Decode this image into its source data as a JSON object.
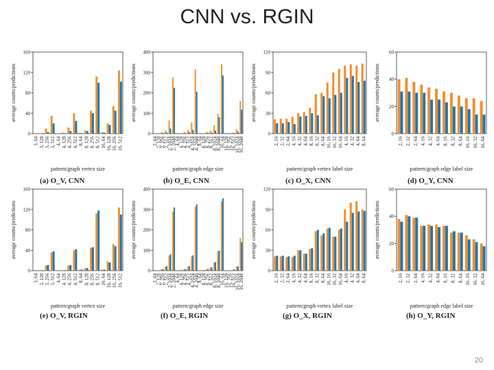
{
  "slide": {
    "title": "CNN vs. RGIN",
    "page_number": "20"
  },
  "colors": {
    "orange": "#f28e2b",
    "blue": "#1f77b4"
  },
  "chart_data": [
    {
      "id": "a",
      "type": "bar",
      "caption": "(a) O_V, CNN",
      "xlabel": "pattern/graph vertex size",
      "ylabel": "average counts/predictions",
      "ylim": [
        0,
        160
      ],
      "yticks": [
        0,
        40,
        80,
        120,
        160
      ],
      "categories": [
        "3, 64",
        "3, 128",
        "3, 256",
        "3, 512",
        "4, 64",
        "4, 128",
        "4, 256",
        "4, 512",
        "8, 64",
        "8, 128",
        "8, 256",
        "8, 512",
        "16, 64",
        "16, 128",
        "16, 256",
        "16, 512"
      ],
      "series": [
        {
          "color": "#f28e2b",
          "values": [
            1,
            1,
            10,
            35,
            1,
            2,
            12,
            40,
            2,
            6,
            45,
            112,
            3,
            20,
            54,
            124
          ]
        },
        {
          "color": "#1f77b4",
          "values": [
            0,
            1,
            3,
            20,
            0,
            1,
            5,
            25,
            1,
            5,
            40,
            100,
            2,
            17,
            45,
            102
          ]
        }
      ]
    },
    {
      "id": "b",
      "type": "bar",
      "caption": "(b) O_E, CNN",
      "xlabel": "pattern/graph edge size",
      "ylabel": "average counts/predictions",
      "ylim": [
        0,
        400
      ],
      "yticks": [
        0,
        100,
        200,
        300,
        400
      ],
      "categories": [
        "2, 64",
        "2, 128",
        "2, 256",
        "2, 512",
        "2, 1024",
        "2, 2048",
        "4, 64",
        "4, 128",
        "4, 256",
        "4, 512",
        "4, 1024",
        "4, 2048",
        "8, 64",
        "8, 128",
        "8, 256",
        "8, 512",
        "8, 1024",
        "8, 2048",
        "16, 64",
        "16, 128",
        "16, 256",
        "16, 512",
        "16, 1024",
        "16, 2048"
      ],
      "series": [
        {
          "color": "#f28e2b",
          "values": [
            0,
            2,
            7,
            15,
            65,
            275,
            0,
            3,
            8,
            18,
            55,
            315,
            0,
            3,
            8,
            15,
            40,
            97,
            340,
            0,
            2,
            5,
            20,
            160
          ]
        },
        {
          "color": "#1f77b4",
          "values": [
            0,
            1,
            3,
            6,
            25,
            225,
            0,
            1,
            3,
            7,
            18,
            205,
            0,
            1,
            4,
            6,
            15,
            80,
            285,
            0,
            1,
            3,
            10,
            118
          ]
        }
      ]
    },
    {
      "id": "c",
      "type": "bar",
      "caption": "(c) O_X, CNN",
      "xlabel": "pattern/graph vertex label size",
      "ylabel": "average counts/predictions",
      "ylim": [
        0,
        120
      ],
      "yticks": [
        0,
        30,
        60,
        90,
        120
      ],
      "categories": [
        "2, 16",
        "2, 32",
        "2, 64",
        "4, 16",
        "4, 32",
        "4, 64",
        "8, 16",
        "8, 32",
        "8, 64",
        "16, 16",
        "16, 32",
        "16, 64",
        "4, 16",
        "4, 32",
        "4, 64",
        "8, 64"
      ],
      "series": [
        {
          "color": "#f28e2b",
          "values": [
            21,
            22,
            22,
            25,
            30,
            32,
            38,
            58,
            60,
            75,
            90,
            95,
            100,
            102,
            100,
            103
          ]
        },
        {
          "color": "#1f77b4",
          "values": [
            15,
            15,
            17,
            14,
            25,
            26,
            30,
            27,
            55,
            52,
            57,
            60,
            82,
            85,
            76,
            78
          ]
        }
      ]
    },
    {
      "id": "d",
      "type": "bar",
      "caption": "(d) O_Y, CNN",
      "xlabel": "pattern/graph edge label size",
      "ylabel": "average counts/predictions",
      "ylim": [
        0,
        60
      ],
      "yticks": [
        0,
        20,
        40,
        60
      ],
      "categories": [
        "2, 16",
        "2, 32",
        "2, 64",
        "4, 16",
        "4, 32",
        "4, 64",
        "8, 16",
        "8, 32",
        "8, 64",
        "16, 16",
        "16, 32",
        "16, 64"
      ],
      "series": [
        {
          "color": "#f28e2b",
          "values": [
            40,
            41,
            38,
            36,
            34,
            33,
            31,
            30,
            28,
            26,
            26,
            24
          ]
        },
        {
          "color": "#1f77b4",
          "values": [
            31,
            31,
            30,
            30,
            25,
            25,
            23,
            20,
            20,
            18,
            14,
            14
          ]
        }
      ]
    },
    {
      "id": "e",
      "type": "bar",
      "caption": "(e) O_V, RGIN",
      "xlabel": "pattern/graph vertex size",
      "ylabel": "average counts/predictions",
      "ylim": [
        0,
        160
      ],
      "yticks": [
        0,
        40,
        80,
        120,
        160
      ],
      "categories": [
        "3, 64",
        "3, 128",
        "3, 256",
        "3, 512",
        "4, 64",
        "4, 128",
        "4, 256",
        "4, 512",
        "8, 64",
        "8, 128",
        "8, 256",
        "8, 512",
        "16, 64",
        "16, 128",
        "16, 256",
        "16, 512"
      ],
      "series": [
        {
          "color": "#f28e2b",
          "values": [
            0,
            1,
            10,
            36,
            0,
            1,
            10,
            40,
            2,
            5,
            45,
            112,
            2,
            18,
            52,
            124
          ]
        },
        {
          "color": "#1f77b4",
          "values": [
            0,
            1,
            11,
            38,
            0,
            1,
            11,
            42,
            2,
            5,
            46,
            118,
            2,
            16,
            48,
            110
          ]
        }
      ]
    },
    {
      "id": "f",
      "type": "bar",
      "caption": "(f) O_E, RGIN",
      "xlabel": "pattern/graph edge size",
      "ylabel": "average counts/predictions",
      "ylim": [
        0,
        400
      ],
      "yticks": [
        0,
        100,
        200,
        300,
        400
      ],
      "categories": [
        "2, 64",
        "2, 128",
        "2, 256",
        "2, 512",
        "2, 1024",
        "2, 2048",
        "4, 64",
        "4, 128",
        "4, 256",
        "4, 512",
        "4, 1024",
        "4, 2048",
        "8, 64",
        "8, 128",
        "8, 256",
        "8, 512",
        "8, 1024",
        "8, 2048",
        "16, 64",
        "16, 128",
        "16, 256",
        "16, 512",
        "16, 1024",
        "16, 2048"
      ],
      "series": [
        {
          "color": "#f28e2b",
          "values": [
            0,
            2,
            7,
            20,
            75,
            290,
            0,
            3,
            7,
            20,
            70,
            315,
            0,
            3,
            7,
            15,
            40,
            95,
            340,
            0,
            2,
            5,
            20,
            160
          ]
        },
        {
          "color": "#1f77b4",
          "values": [
            0,
            2,
            8,
            22,
            80,
            310,
            0,
            3,
            8,
            22,
            75,
            325,
            0,
            3,
            8,
            16,
            42,
            98,
            355,
            0,
            2,
            6,
            22,
            140
          ]
        }
      ]
    },
    {
      "id": "g",
      "type": "bar",
      "caption": "(g) O_X, RGIN",
      "xlabel": "pattern/graph vertex label size",
      "ylabel": "average counts/predictions",
      "ylim": [
        0,
        120
      ],
      "yticks": [
        0,
        30,
        60,
        90,
        120
      ],
      "categories": [
        "2, 16",
        "2, 32",
        "2, 64",
        "4, 16",
        "4, 32",
        "4, 64",
        "8, 16",
        "8, 32",
        "8, 64",
        "16, 16",
        "16, 32",
        "16, 64",
        "4, 16",
        "4, 32",
        "4, 64",
        "8, 64"
      ],
      "series": [
        {
          "color": "#f28e2b",
          "values": [
            21,
            21,
            20,
            20,
            30,
            25,
            32,
            58,
            52,
            62,
            50,
            60,
            90,
            100,
            102,
            90
          ]
        },
        {
          "color": "#1f77b4",
          "values": [
            22,
            22,
            21,
            22,
            30,
            25,
            33,
            60,
            55,
            63,
            50,
            62,
            72,
            85,
            87,
            88
          ]
        }
      ]
    },
    {
      "id": "h",
      "type": "bar",
      "caption": "(h) O_Y, RGIN",
      "xlabel": "pattern/graph edge label size",
      "ylabel": "average counts/predictions",
      "ylim": [
        0,
        60
      ],
      "yticks": [
        0,
        20,
        40,
        60
      ],
      "categories": [
        "2, 16",
        "2, 32",
        "2, 64",
        "4, 16",
        "4, 32",
        "4, 64",
        "8, 16",
        "8, 32",
        "8, 64",
        "16, 16",
        "16, 32",
        "16, 64"
      ],
      "series": [
        {
          "color": "#f28e2b",
          "values": [
            38,
            41,
            39,
            33,
            34,
            34,
            33,
            28,
            28,
            26,
            23,
            20
          ]
        },
        {
          "color": "#1f77b4",
          "values": [
            36,
            40,
            39,
            33,
            33,
            32,
            33,
            29,
            28,
            23,
            21,
            18
          ]
        }
      ]
    }
  ]
}
